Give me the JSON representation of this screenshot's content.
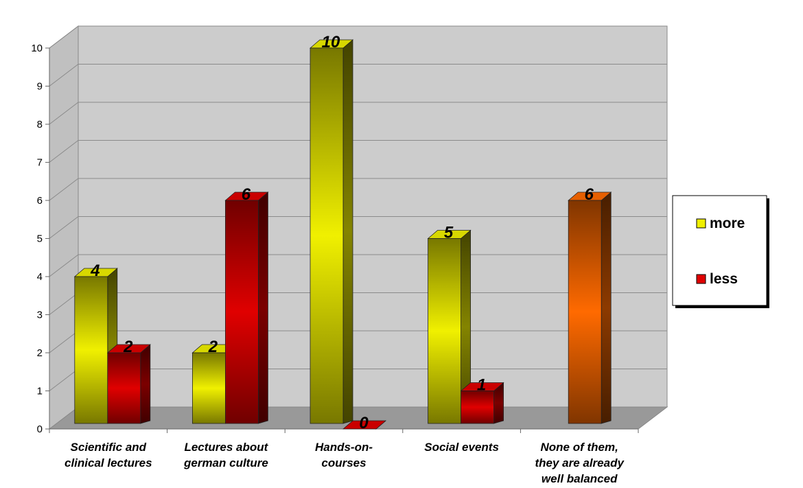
{
  "chart_data": {
    "type": "bar",
    "categories": [
      [
        "Scientific and",
        "clinical lectures"
      ],
      [
        "Lectures about",
        "german culture"
      ],
      [
        "Hands-on-",
        "courses"
      ],
      [
        "Social events"
      ],
      [
        "None of them,",
        "they are already",
        "well balanced"
      ]
    ],
    "series": [
      {
        "name": "more",
        "values": [
          4,
          2,
          10,
          5,
          null
        ],
        "color": "#f0f000"
      },
      {
        "name": "less",
        "values": [
          2,
          6,
          0,
          1,
          null
        ],
        "color": "#e00000"
      }
    ],
    "extra_bars": [
      {
        "category_index": 4,
        "value": 6,
        "color": "#ff6a00"
      }
    ],
    "ylim": [
      0,
      10
    ],
    "yticks": [
      0,
      1,
      2,
      3,
      4,
      5,
      6,
      7,
      8,
      9,
      10
    ],
    "grid": true,
    "projection": "3d",
    "legend_position": "right"
  }
}
